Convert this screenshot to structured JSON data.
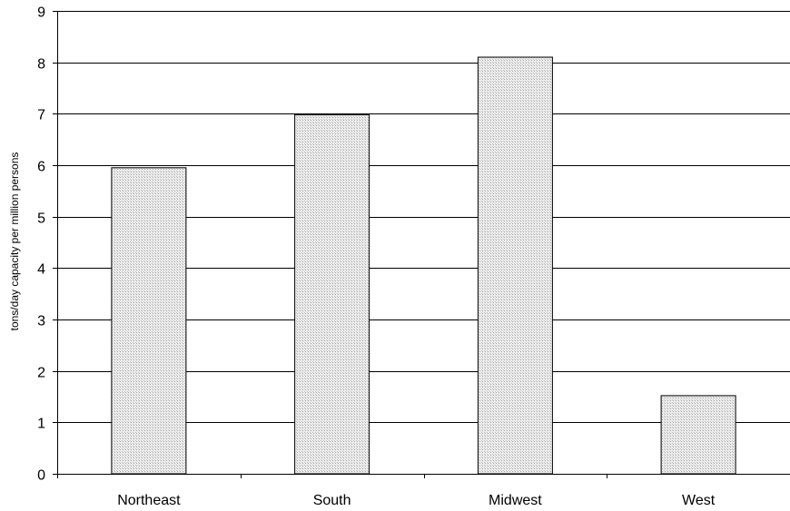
{
  "chart_data": {
    "type": "bar",
    "title": "",
    "xlabel": "",
    "ylabel": "tons/day capacity per million persons",
    "categories": [
      "Northeast",
      "South",
      "Midwest",
      "West"
    ],
    "values": [
      5.95,
      6.98,
      8.1,
      1.52
    ],
    "ylim": [
      0,
      9
    ],
    "yticks": [
      "0",
      "1",
      "2",
      "3",
      "4",
      "5",
      "6",
      "7",
      "8",
      "9"
    ],
    "grid": true,
    "legend": "none",
    "bar_color": "#d9d9d9",
    "bar_edge_color": "#000000"
  }
}
